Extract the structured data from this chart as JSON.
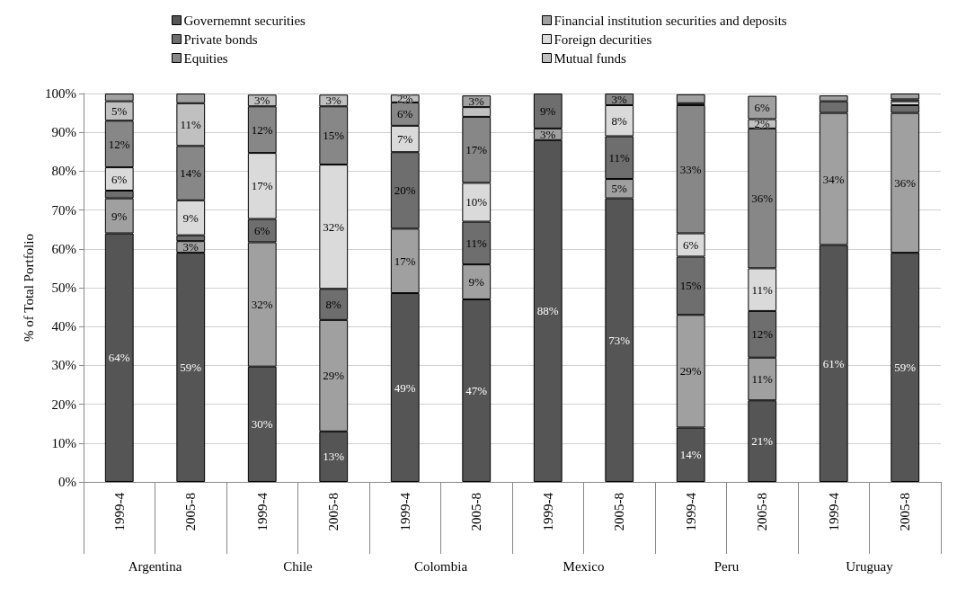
{
  "chart_data": {
    "type": "bar",
    "stacked": true,
    "ylabel": "% of Total Portfolio",
    "categories": [
      "1999-4",
      "2005-8",
      "1999-4",
      "2005-8",
      "1999-4",
      "2005-8",
      "1999-4",
      "2005-8",
      "1999-4",
      "2005-8",
      "1999-4",
      "2005-8"
    ],
    "annotations": [
      "Argentina",
      "Chile",
      "Colombia",
      "Mexico",
      "Peru",
      "Uruguay"
    ],
    "series": [
      {
        "name": "Governemnt securities",
        "color": "#555555",
        "values": [
          64,
          59,
          29.7,
          13,
          48.6,
          47,
          88,
          73,
          14,
          21,
          61,
          59
        ],
        "value_labels": [
          "64%",
          "59%",
          "30%",
          "13%",
          "49%",
          "47%",
          "88%",
          "73%",
          "14%",
          "21%",
          "61%",
          "59%"
        ]
      },
      {
        "name": "Financial institution securities and deposits",
        "color": "#a0a0a0",
        "values": [
          9,
          3,
          32,
          28.7,
          16.6,
          9,
          3,
          5,
          29,
          11,
          34,
          36
        ],
        "value_labels": [
          "9%",
          "3%",
          "32%",
          "29%",
          "17%",
          "9%",
          "3%",
          "5%",
          "29%",
          "11%",
          "34%",
          "36%"
        ]
      },
      {
        "name": "Private bonds",
        "color": "#6e6e6e",
        "values": [
          2,
          1.5,
          6,
          8,
          19.7,
          11,
          9,
          11,
          15,
          12,
          3,
          2
        ],
        "value_labels": [
          null,
          null,
          "6%",
          "8%",
          "20%",
          "11%",
          "9%",
          "11%",
          "15%",
          "12%",
          null,
          null
        ]
      },
      {
        "name": "Foreign decurities",
        "color": "#dadada",
        "values": [
          6,
          9,
          17,
          32,
          6.8,
          10,
          null,
          8,
          6,
          11,
          null,
          1
        ],
        "value_labels": [
          "6%",
          "9%",
          "17%",
          "32%",
          "7%",
          "10%",
          null,
          "8%",
          "6%",
          "11%",
          null,
          null
        ]
      },
      {
        "name": "Equities",
        "color": "#878787",
        "values": [
          12,
          14,
          12,
          15,
          6,
          17,
          null,
          3,
          33,
          36,
          null,
          0.5
        ],
        "value_labels": [
          "12%",
          "14%",
          "12%",
          "15%",
          "6%",
          "17%",
          null,
          "3%",
          "33%",
          "36%",
          null,
          null
        ]
      },
      {
        "name": "Mutual funds",
        "color": "#c0c0c0",
        "values": [
          5,
          11,
          3,
          3,
          2,
          2.5,
          null,
          null,
          0.5,
          2.4,
          null,
          null
        ],
        "value_labels": [
          "5%",
          "11%",
          "3%",
          "3%",
          "2%",
          null,
          null,
          null,
          null,
          "2%",
          null,
          null
        ]
      },
      {
        "color": "#a0a0a0",
        "values": [
          2,
          2.5,
          null,
          null,
          null,
          3,
          null,
          null,
          2.3,
          6,
          1.5,
          1.5
        ],
        "value_labels": [
          null,
          null,
          null,
          null,
          null,
          "3%",
          null,
          null,
          null,
          "6%",
          null,
          null
        ]
      }
    ],
    "ylim": [
      0,
      100
    ],
    "yticks": [
      {
        "value": 0,
        "label": "0%"
      },
      {
        "value": 10,
        "label": "10%"
      },
      {
        "value": 20,
        "label": "20%"
      },
      {
        "value": 30,
        "label": "30%"
      },
      {
        "value": 40,
        "label": "40%"
      },
      {
        "value": 50,
        "label": "50%"
      },
      {
        "value": 60,
        "label": "60%"
      },
      {
        "value": 70,
        "label": "70%"
      },
      {
        "value": 80,
        "label": "80%"
      },
      {
        "value": 90,
        "label": "90%"
      },
      {
        "value": 100,
        "label": "100%"
      }
    ],
    "grid": "y",
    "legend": "top"
  }
}
